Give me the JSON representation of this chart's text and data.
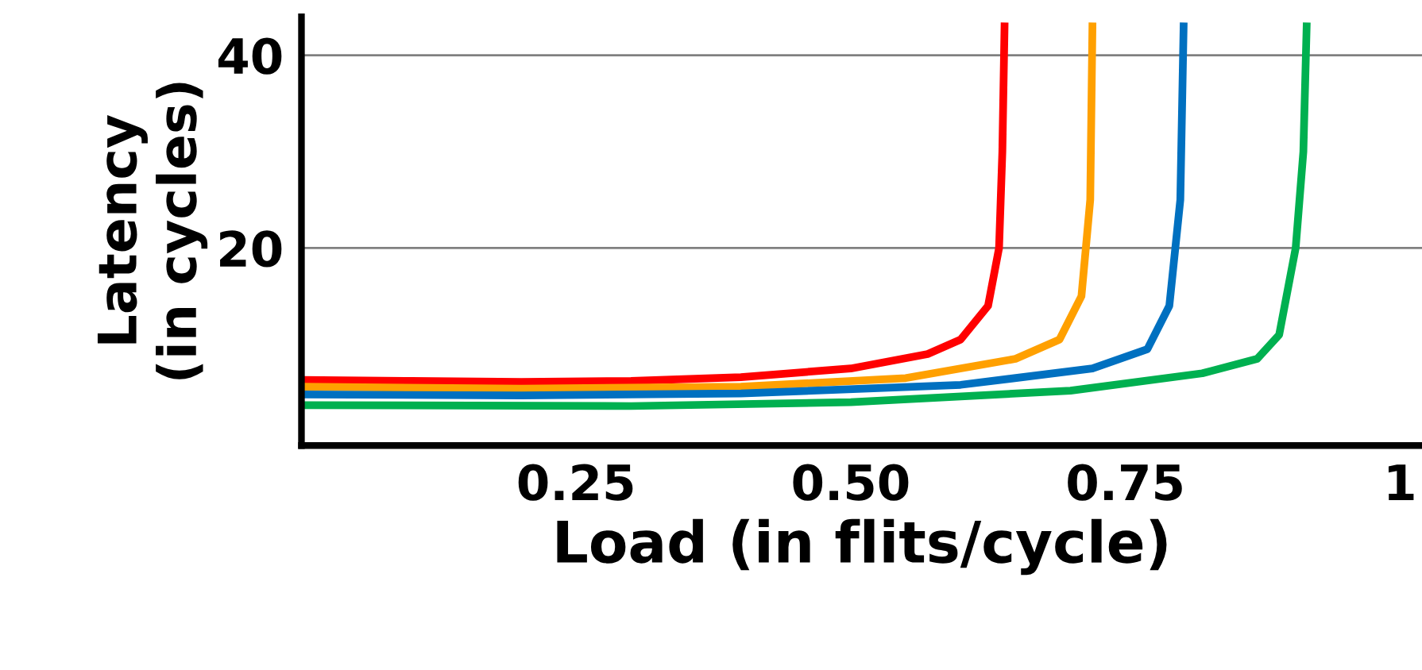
{
  "chart_data": {
    "type": "line",
    "xlabel": "Load (in flits/cycle)",
    "ylabel": "Latency\n(in cycles)",
    "xlim": [
      0,
      1.02
    ],
    "ylim": [
      -0.5,
      44
    ],
    "xticks": [
      {
        "value": 0.25,
        "label": "0.25"
      },
      {
        "value": 0.5,
        "label": "0.50"
      },
      {
        "value": 0.75,
        "label": "0.75"
      },
      1
    ],
    "yticks": [
      20,
      40
    ],
    "grid": "y",
    "marker": "none",
    "line_style": "solid",
    "series": [
      {
        "color": "#ff0000",
        "x": [
          0,
          0.1,
          0.2,
          0.3,
          0.4,
          0.5,
          0.57,
          0.6,
          0.625,
          0.635,
          0.638,
          0.64
        ],
        "values": [
          6.3,
          6.2,
          6.1,
          6.2,
          6.6,
          7.5,
          9,
          10.5,
          14,
          20,
          30,
          43
        ]
      },
      {
        "color": "#ffa000",
        "x": [
          0,
          0.2,
          0.4,
          0.55,
          0.65,
          0.69,
          0.71,
          0.718,
          0.72
        ],
        "values": [
          5.6,
          5.4,
          5.6,
          6.5,
          8.5,
          10.5,
          15,
          25,
          43
        ]
      },
      {
        "color": "#0070c0",
        "x": [
          0,
          0.2,
          0.4,
          0.6,
          0.72,
          0.77,
          0.79,
          0.8,
          0.803
        ],
        "values": [
          4.8,
          4.7,
          4.9,
          5.8,
          7.5,
          9.5,
          14,
          25,
          43
        ]
      },
      {
        "color": "#00b050",
        "x": [
          0,
          0.3,
          0.5,
          0.7,
          0.82,
          0.87,
          0.89,
          0.905,
          0.912,
          0.915
        ],
        "values": [
          3.7,
          3.6,
          4.0,
          5.2,
          7,
          8.5,
          11,
          20,
          30,
          43
        ]
      }
    ]
  }
}
